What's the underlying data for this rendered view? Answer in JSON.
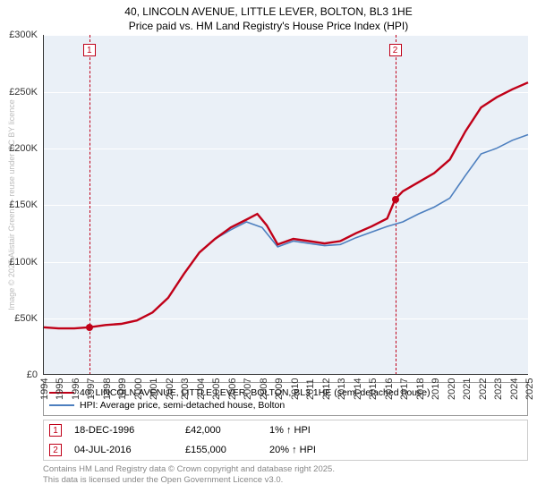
{
  "title_line1": "40, LINCOLN AVENUE, LITTLE LEVER, BOLTON, BL3 1HE",
  "title_line2": "Price paid vs. HM Land Registry's House Price Index (HPI)",
  "chart": {
    "type": "line",
    "background_color": "#eaf0f7",
    "grid_color": "#ffffff",
    "axis_color": "#333333",
    "ylim": [
      0,
      300000
    ],
    "ytick_step": 50000,
    "yticks": [
      "£0",
      "£50K",
      "£100K",
      "£150K",
      "£200K",
      "£250K",
      "£300K"
    ],
    "xyears": [
      1994,
      1995,
      1996,
      1997,
      1998,
      1999,
      2000,
      2001,
      2002,
      2003,
      2004,
      2005,
      2006,
      2007,
      2008,
      2009,
      2010,
      2011,
      2012,
      2013,
      2014,
      2015,
      2016,
      2017,
      2018,
      2019,
      2020,
      2021,
      2022,
      2023,
      2024,
      2025
    ],
    "series": [
      {
        "name": "price_paid",
        "color": "#c00018",
        "width": 2.4,
        "legend": "40, LINCOLN AVENUE, LITTLE LEVER, BOLTON, BL3 1HE (semi-detached house)",
        "data": [
          [
            1994,
            42000
          ],
          [
            1995,
            41000
          ],
          [
            1996,
            41000
          ],
          [
            1996.96,
            42000
          ],
          [
            1998,
            44000
          ],
          [
            1999,
            45000
          ],
          [
            2000,
            48000
          ],
          [
            2001,
            55000
          ],
          [
            2002,
            68000
          ],
          [
            2003,
            89000
          ],
          [
            2004,
            108000
          ],
          [
            2005,
            120000
          ],
          [
            2006,
            130000
          ],
          [
            2007,
            137000
          ],
          [
            2007.7,
            142000
          ],
          [
            2008.3,
            132000
          ],
          [
            2009,
            115000
          ],
          [
            2010,
            120000
          ],
          [
            2011,
            118000
          ],
          [
            2012,
            116000
          ],
          [
            2013,
            118000
          ],
          [
            2014,
            125000
          ],
          [
            2015,
            131000
          ],
          [
            2016,
            138000
          ],
          [
            2016.51,
            155000
          ],
          [
            2017,
            162000
          ],
          [
            2018,
            170000
          ],
          [
            2019,
            178000
          ],
          [
            2020,
            190000
          ],
          [
            2021,
            215000
          ],
          [
            2022,
            236000
          ],
          [
            2023,
            245000
          ],
          [
            2024,
            252000
          ],
          [
            2025,
            258000
          ]
        ],
        "points": [
          [
            1996.96,
            42000
          ],
          [
            2016.51,
            155000
          ]
        ]
      },
      {
        "name": "hpi",
        "color": "#4d7fbf",
        "width": 1.6,
        "legend": "HPI: Average price, semi-detached house, Bolton",
        "data": [
          [
            1994,
            42000
          ],
          [
            1995,
            41000
          ],
          [
            1996,
            41000
          ],
          [
            1997,
            42000
          ],
          [
            1998,
            44000
          ],
          [
            1999,
            45000
          ],
          [
            2000,
            48000
          ],
          [
            2001,
            55000
          ],
          [
            2002,
            68000
          ],
          [
            2003,
            89000
          ],
          [
            2004,
            108000
          ],
          [
            2005,
            120000
          ],
          [
            2006,
            128000
          ],
          [
            2007,
            135000
          ],
          [
            2008,
            130000
          ],
          [
            2009,
            113000
          ],
          [
            2010,
            118000
          ],
          [
            2011,
            116000
          ],
          [
            2012,
            114000
          ],
          [
            2013,
            115000
          ],
          [
            2014,
            121000
          ],
          [
            2015,
            126000
          ],
          [
            2016,
            131000
          ],
          [
            2017,
            135000
          ],
          [
            2018,
            142000
          ],
          [
            2019,
            148000
          ],
          [
            2020,
            156000
          ],
          [
            2021,
            176000
          ],
          [
            2022,
            195000
          ],
          [
            2023,
            200000
          ],
          [
            2024,
            207000
          ],
          [
            2025,
            212000
          ]
        ]
      }
    ],
    "markers": [
      {
        "num": "1",
        "year": 1996.96,
        "color": "#c00018"
      },
      {
        "num": "2",
        "year": 2016.51,
        "color": "#c00018"
      }
    ]
  },
  "legend_title_fontsize": 10.5,
  "sales": [
    {
      "num": "1",
      "date": "18-DEC-1996",
      "price": "£42,000",
      "pct": "1% ↑ HPI",
      "color": "#c00018"
    },
    {
      "num": "2",
      "date": "04-JUL-2016",
      "price": "£155,000",
      "pct": "20% ↑ HPI",
      "color": "#c00018"
    }
  ],
  "footer_line1": "Contains HM Land Registry data © Crown copyright and database right 2025.",
  "footer_line2": "This data is licensed under the Open Government Licence v3.0.",
  "side_licence": "Image © 2025 Alistair Green — reuse under CC BY licence"
}
